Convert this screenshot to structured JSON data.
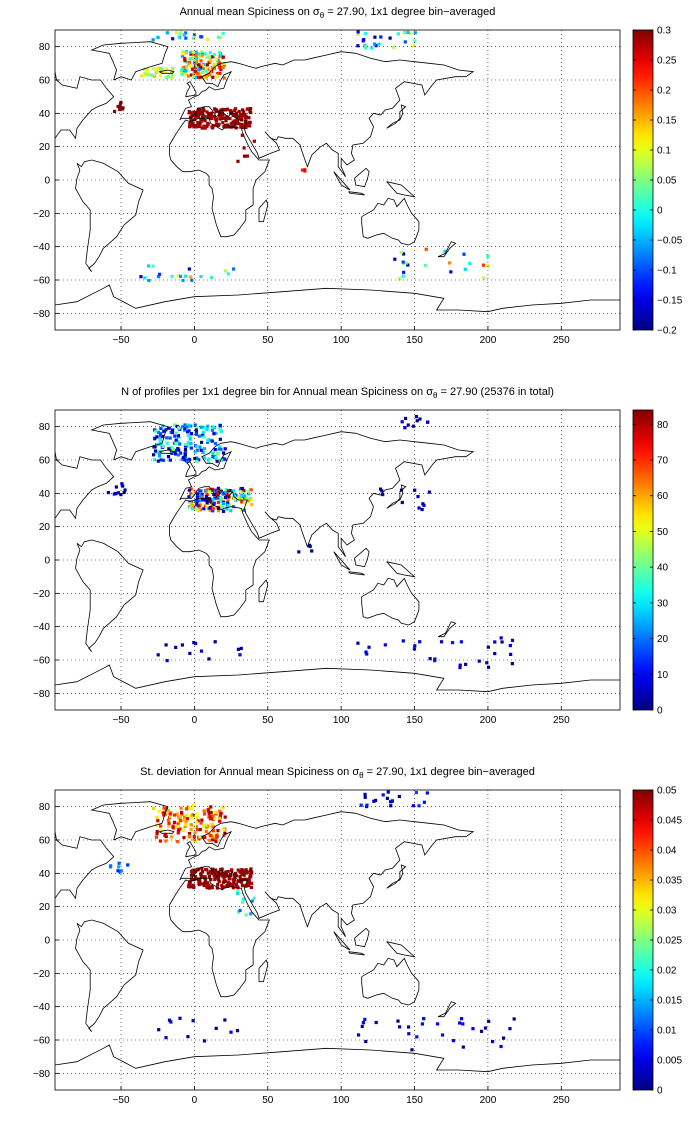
{
  "panels": [
    {
      "title_before": "Annual mean Spiciness on σ",
      "title_sub": "θ",
      "title_after": " = 27.90, 1x1 degree bin−averaged",
      "xticks": [
        "−50",
        "0",
        "50",
        "100",
        "150",
        "200",
        "250"
      ],
      "xtick_values": [
        -50,
        0,
        50,
        100,
        150,
        200,
        250
      ],
      "yticks": [
        "80",
        "60",
        "40",
        "20",
        "0",
        "−20",
        "−40",
        "−60",
        "−80"
      ],
      "ytick_values": [
        80,
        60,
        40,
        20,
        0,
        -20,
        -40,
        -60,
        -80
      ],
      "colorbar_ticks": [
        "0.3",
        "0.25",
        "0.2",
        "0.15",
        "0.1",
        "0.05",
        "0",
        "−0.05",
        "−0.1",
        "−0.15",
        "−0.2"
      ],
      "colorbar_values": [
        0.3,
        0.25,
        0.2,
        0.15,
        0.1,
        0.05,
        0,
        -0.05,
        -0.1,
        -0.15,
        -0.2
      ],
      "colorbar_range": [
        -0.2,
        0.3
      ]
    },
    {
      "title_before": "N of profiles per 1x1 degree bin for Annual mean Spiciness on σ",
      "title_sub": "θ",
      "title_after": " = 27.90 (25376 in total)",
      "xticks": [
        "−50",
        "0",
        "50",
        "100",
        "150",
        "200",
        "250"
      ],
      "xtick_values": [
        -50,
        0,
        50,
        100,
        150,
        200,
        250
      ],
      "yticks": [
        "80",
        "60",
        "40",
        "20",
        "0",
        "−20",
        "−40",
        "−60",
        "−80"
      ],
      "ytick_values": [
        80,
        60,
        40,
        20,
        0,
        -20,
        -40,
        -60,
        -80
      ],
      "colorbar_ticks": [
        "80",
        "70",
        "60",
        "50",
        "40",
        "30",
        "20",
        "10",
        "0"
      ],
      "colorbar_values": [
        80,
        70,
        60,
        50,
        40,
        30,
        20,
        10,
        0
      ],
      "colorbar_range": [
        0,
        84
      ]
    },
    {
      "title_before": "St. deviation for Annual mean Spiciness on σ",
      "title_sub": "θ",
      "title_after": " = 27.90, 1x1 degree bin−averaged",
      "xticks": [
        "−50",
        "0",
        "50",
        "100",
        "150",
        "200",
        "250"
      ],
      "xtick_values": [
        -50,
        0,
        50,
        100,
        150,
        200,
        250
      ],
      "yticks": [
        "80",
        "60",
        "40",
        "20",
        "0",
        "−20",
        "−40",
        "−60",
        "−80"
      ],
      "ytick_values": [
        80,
        60,
        40,
        20,
        0,
        -20,
        -40,
        -60,
        -80
      ],
      "colorbar_ticks": [
        "0.05",
        "0.045",
        "0.04",
        "0.035",
        "0.03",
        "0.025",
        "0.02",
        "0.015",
        "0.01",
        "0.005",
        "0"
      ],
      "colorbar_values": [
        0.05,
        0.045,
        0.04,
        0.035,
        0.03,
        0.025,
        0.02,
        0.015,
        0.01,
        0.005,
        0
      ],
      "colorbar_range": [
        0,
        0.05
      ]
    }
  ],
  "map_extent": {
    "lon": [
      -95,
      290
    ],
    "lat": [
      -90,
      90
    ]
  },
  "colormap": "jet"
}
